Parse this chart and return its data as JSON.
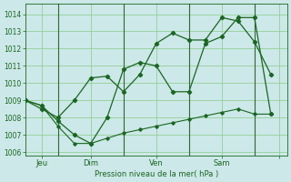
{
  "xlabel": "Pression niveau de la mer( hPa )",
  "bg_color": "#cce8e8",
  "grid_color": "#88cc88",
  "line_color": "#1a6620",
  "vline_color": "#336633",
  "ylim": [
    1005.8,
    1014.6
  ],
  "xlim": [
    0,
    16
  ],
  "yticks": [
    1006,
    1007,
    1008,
    1009,
    1010,
    1011,
    1012,
    1013,
    1014
  ],
  "day_vlines": [
    2,
    6,
    10,
    14
  ],
  "day_tick_positions": [
    1,
    4,
    8,
    12,
    15.5
  ],
  "day_labels": [
    "Jeu",
    "Dim",
    "Ven",
    "Sam",
    ""
  ],
  "series1": {
    "x": [
      0,
      1,
      2,
      3,
      4,
      5,
      6,
      7,
      8,
      9,
      10,
      11,
      12,
      13,
      14,
      15
    ],
    "y": [
      1009.0,
      1008.7,
      1007.8,
      1007.0,
      1006.5,
      1008.0,
      1010.8,
      1011.2,
      1011.0,
      1009.5,
      1009.5,
      1012.3,
      1012.7,
      1013.8,
      1013.8,
      1008.2
    ]
  },
  "series2": {
    "x": [
      0,
      1,
      2,
      3,
      4,
      5,
      6,
      7,
      8,
      9,
      10,
      11,
      12,
      13,
      14,
      15
    ],
    "y": [
      1009.0,
      1008.5,
      1008.0,
      1009.0,
      1010.3,
      1010.4,
      1009.5,
      1010.5,
      1012.3,
      1012.9,
      1012.5,
      1012.5,
      1013.8,
      1013.6,
      1012.4,
      1010.5
    ]
  },
  "series3": {
    "x": [
      0,
      1,
      2,
      3,
      4,
      5,
      6,
      7,
      8,
      9,
      10,
      11,
      12,
      13,
      14,
      15
    ],
    "y": [
      1009.0,
      1008.7,
      1007.5,
      1006.5,
      1006.5,
      1006.8,
      1007.1,
      1007.3,
      1007.5,
      1007.7,
      1007.9,
      1008.1,
      1008.3,
      1008.5,
      1008.2,
      1008.2
    ]
  }
}
